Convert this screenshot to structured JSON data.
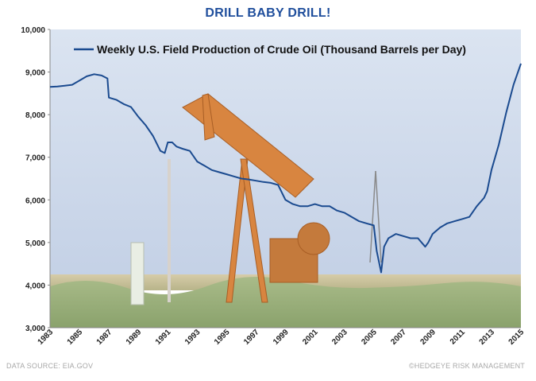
{
  "header": {
    "title": "DRILL BABY DRILL!"
  },
  "footer": {
    "source": "DATA SOURCE: EIA.GOV",
    "credit": "©HEDGEYE RISK MANAGEMENT"
  },
  "colors": {
    "line": "#1a4a8f",
    "title": "#1f4e9c",
    "sky": "#cdd9ea",
    "field": "#cfc39b",
    "pumpjack": "#d88540"
  },
  "chart_data": {
    "type": "line",
    "title": "",
    "legend": "Weekly U.S. Field Production of Crude Oil  (Thousand Barrels per Day)",
    "legend_position": "top-center",
    "background": "photo of an oil pumpjack in a field",
    "xlabel": "",
    "ylabel": "",
    "xlim": [
      1983,
      2015
    ],
    "ylim": [
      3000,
      10000
    ],
    "x_ticks": [
      "1983",
      "1985",
      "1987",
      "1989",
      "1991",
      "1993",
      "1995",
      "1997",
      "1999",
      "2001",
      "2003",
      "2005",
      "2007",
      "2009",
      "2011",
      "2013",
      "2015"
    ],
    "y_ticks": [
      "3,000",
      "4,000",
      "5,000",
      "6,000",
      "7,000",
      "8,000",
      "9,000",
      "10,000"
    ],
    "grid": false,
    "series": [
      {
        "name": "Weekly U.S. Field Production of Crude Oil  (Thousand Barrels per Day)",
        "x": [
          1983.0,
          1983.5,
          1984.0,
          1984.5,
          1985.0,
          1985.5,
          1986.0,
          1986.5,
          1986.9,
          1987.0,
          1987.5,
          1988.0,
          1988.5,
          1989.0,
          1989.5,
          1990.0,
          1990.5,
          1990.8,
          1991.0,
          1991.3,
          1991.6,
          1992.0,
          1992.5,
          1993.0,
          1993.5,
          1994.0,
          1994.5,
          1995.0,
          1995.5,
          1996.0,
          1996.5,
          1997.0,
          1997.5,
          1998.0,
          1998.5,
          1999.0,
          1999.5,
          2000.0,
          2000.5,
          2001.0,
          2001.5,
          2002.0,
          2002.5,
          2003.0,
          2003.5,
          2004.0,
          2004.5,
          2005.0,
          2005.2,
          2005.5,
          2005.7,
          2006.0,
          2006.5,
          2007.0,
          2007.5,
          2008.0,
          2008.5,
          2008.7,
          2009.0,
          2009.5,
          2010.0,
          2010.5,
          2011.0,
          2011.5,
          2012.0,
          2012.5,
          2012.7,
          2013.0,
          2013.5,
          2014.0,
          2014.5,
          2015.0
        ],
        "y": [
          8650,
          8660,
          8680,
          8700,
          8800,
          8900,
          8950,
          8920,
          8850,
          8400,
          8350,
          8250,
          8180,
          7950,
          7750,
          7500,
          7150,
          7100,
          7350,
          7350,
          7250,
          7200,
          7150,
          6900,
          6800,
          6700,
          6650,
          6600,
          6550,
          6500,
          6480,
          6450,
          6420,
          6400,
          6350,
          6000,
          5900,
          5850,
          5850,
          5900,
          5850,
          5850,
          5750,
          5700,
          5600,
          5500,
          5450,
          5400,
          4800,
          4300,
          4900,
          5100,
          5200,
          5150,
          5100,
          5100,
          4900,
          5000,
          5200,
          5350,
          5450,
          5500,
          5550,
          5600,
          5850,
          6050,
          6200,
          6700,
          7300,
          8050,
          8700,
          9200
        ]
      }
    ]
  }
}
